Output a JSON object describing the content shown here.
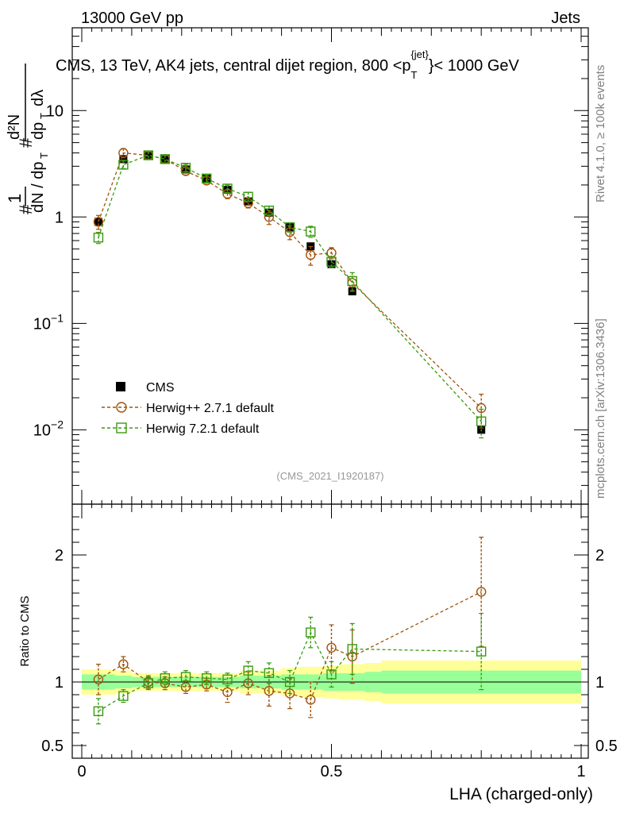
{
  "header": {
    "left": "13000 GeV pp",
    "right": "Jets"
  },
  "title_parts": {
    "before": "CMS, 13 TeV, AK4 jets, central dijet region, 800 <p",
    "sub": "T",
    "sup": "{jet}",
    "after": "}< 1000 GeV"
  },
  "ylabel_main": "d²N / (d p_T d λ) normalized",
  "ylabel_ratio": "Ratio to CMS",
  "xlabel": "LHA (charged-only)",
  "side_label_top": "Rivet 4.1.0, ≥ 100k events",
  "side_label_bottom": "mcplots.cern.ch [arXiv:1306.3436]",
  "analysis_id": "(CMS_2021_I1920187)",
  "colors": {
    "cms": "#000000",
    "herwigpp": "#a0520a",
    "herwig7": "#3a9a10",
    "band_inner": "#99ff99",
    "band_outer": "#ffff99"
  },
  "chart_data": [
    {
      "type": "scatter",
      "panel": "main",
      "yscale": "log",
      "xlim": [
        0,
        1
      ],
      "ylim": [
        0.002,
        60
      ],
      "yticks": [
        {
          "value": 0.01,
          "base": "10",
          "exp": "−2"
        },
        {
          "value": 0.1,
          "base": "10",
          "exp": "−1"
        },
        {
          "value": 1,
          "label": "1"
        },
        {
          "value": 10,
          "label": "10"
        }
      ],
      "x": [
        0.0333,
        0.0833,
        0.1333,
        0.1667,
        0.2083,
        0.25,
        0.2917,
        0.3333,
        0.375,
        0.4167,
        0.4583,
        0.5,
        0.5417,
        0.8
      ],
      "series": [
        {
          "name": "CMS",
          "marker": "square-filled",
          "values": [
            0.9,
            3.5,
            3.8,
            3.5,
            2.8,
            2.3,
            1.8,
            1.4,
            1.1,
            0.8,
            0.53,
            0.36,
            0.2,
            0.01
          ]
        },
        {
          "name": "Herwig++ 2.7.1 default",
          "marker": "circle-open",
          "values": [
            0.9,
            4.0,
            3.8,
            3.5,
            2.7,
            2.2,
            1.65,
            1.35,
            1.0,
            0.72,
            0.44,
            0.46,
            0.24,
            0.016
          ],
          "err_rel": [
            0.15,
            0.1,
            0.08,
            0.08,
            0.08,
            0.08,
            0.1,
            0.1,
            0.15,
            0.15,
            0.2,
            0.12,
            0.15,
            0.35
          ]
        },
        {
          "name": "Herwig 7.2.1 default",
          "marker": "square-open",
          "values": [
            0.64,
            3.1,
            3.8,
            3.5,
            2.9,
            2.3,
            1.85,
            1.55,
            1.15,
            0.8,
            0.73,
            0.38,
            0.25,
            0.012
          ],
          "err_rel": [
            0.12,
            0.08,
            0.08,
            0.08,
            0.08,
            0.08,
            0.08,
            0.1,
            0.1,
            0.1,
            0.12,
            0.12,
            0.2,
            0.3
          ]
        }
      ]
    },
    {
      "type": "scatter",
      "panel": "ratio",
      "xlim": [
        0,
        1
      ],
      "ylim": [
        0.4,
        2.4
      ],
      "ylabel": "Ratio to CMS",
      "xlabel": "LHA (charged-only)",
      "xticks": [
        {
          "value": 0,
          "label": "0"
        },
        {
          "value": 0.5,
          "label": "0.5"
        },
        {
          "value": 1,
          "label": "1"
        }
      ],
      "yticks": [
        {
          "value": 0.5,
          "label": "0.5"
        },
        {
          "value": 1,
          "label": "1"
        },
        {
          "value": 2,
          "label": "2"
        }
      ],
      "x": [
        0.0333,
        0.0833,
        0.1333,
        0.1667,
        0.2083,
        0.25,
        0.2917,
        0.3333,
        0.375,
        0.4167,
        0.4583,
        0.5,
        0.5417,
        0.8
      ],
      "bands": {
        "edges": [
          0,
          0.0667,
          0.1,
          0.15,
          0.1833,
          0.2333,
          0.2667,
          0.3167,
          0.35,
          0.4,
          0.4333,
          0.4833,
          0.5167,
          0.5667,
          0.6,
          1.0
        ],
        "inner": [
          0.06,
          0.05,
          0.04,
          0.04,
          0.04,
          0.04,
          0.04,
          0.05,
          0.05,
          0.06,
          0.06,
          0.07,
          0.07,
          0.08,
          0.09
        ],
        "outer": [
          0.1,
          0.09,
          0.07,
          0.07,
          0.07,
          0.07,
          0.07,
          0.09,
          0.09,
          0.11,
          0.12,
          0.13,
          0.14,
          0.15,
          0.17
        ]
      },
      "series": [
        {
          "name": "Herwig++ 2.7.1 default",
          "values": [
            1.02,
            1.14,
            1.0,
            0.99,
            0.96,
            0.98,
            0.92,
            0.99,
            0.93,
            0.91,
            0.86,
            1.27,
            1.2,
            1.71
          ],
          "err": [
            0.12,
            0.06,
            0.05,
            0.05,
            0.05,
            0.05,
            0.08,
            0.09,
            0.12,
            0.12,
            0.14,
            0.18,
            0.21,
            0.43
          ]
        },
        {
          "name": "Herwig 7.2.1 default",
          "values": [
            0.77,
            0.89,
            0.99,
            1.03,
            1.04,
            1.03,
            1.02,
            1.09,
            1.07,
            1.0,
            1.39,
            1.06,
            1.26,
            1.24
          ],
          "err": [
            0.1,
            0.05,
            0.05,
            0.05,
            0.05,
            0.05,
            0.05,
            0.07,
            0.08,
            0.09,
            0.12,
            0.1,
            0.2,
            0.3
          ]
        }
      ]
    }
  ]
}
